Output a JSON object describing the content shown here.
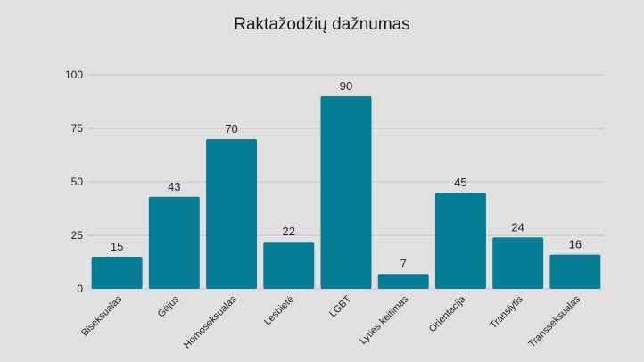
{
  "chart_data": {
    "type": "bar",
    "title": "Raktažodžių dažnumas",
    "xlabel": "",
    "ylabel": "",
    "categories": [
      "Biseksualas",
      "Gėjus",
      "Homoseksualas",
      "Lesbietė",
      "LGBT",
      "Lyties keitimas",
      "Orientacija",
      "Translytis",
      "Transseksualas"
    ],
    "values": [
      15,
      43,
      70,
      22,
      90,
      7,
      45,
      24,
      16
    ],
    "ylim": [
      0,
      100
    ],
    "yticks": [
      0,
      25,
      50,
      75,
      100
    ],
    "grid": true,
    "legend": "none",
    "bar_color": "#087d96"
  }
}
